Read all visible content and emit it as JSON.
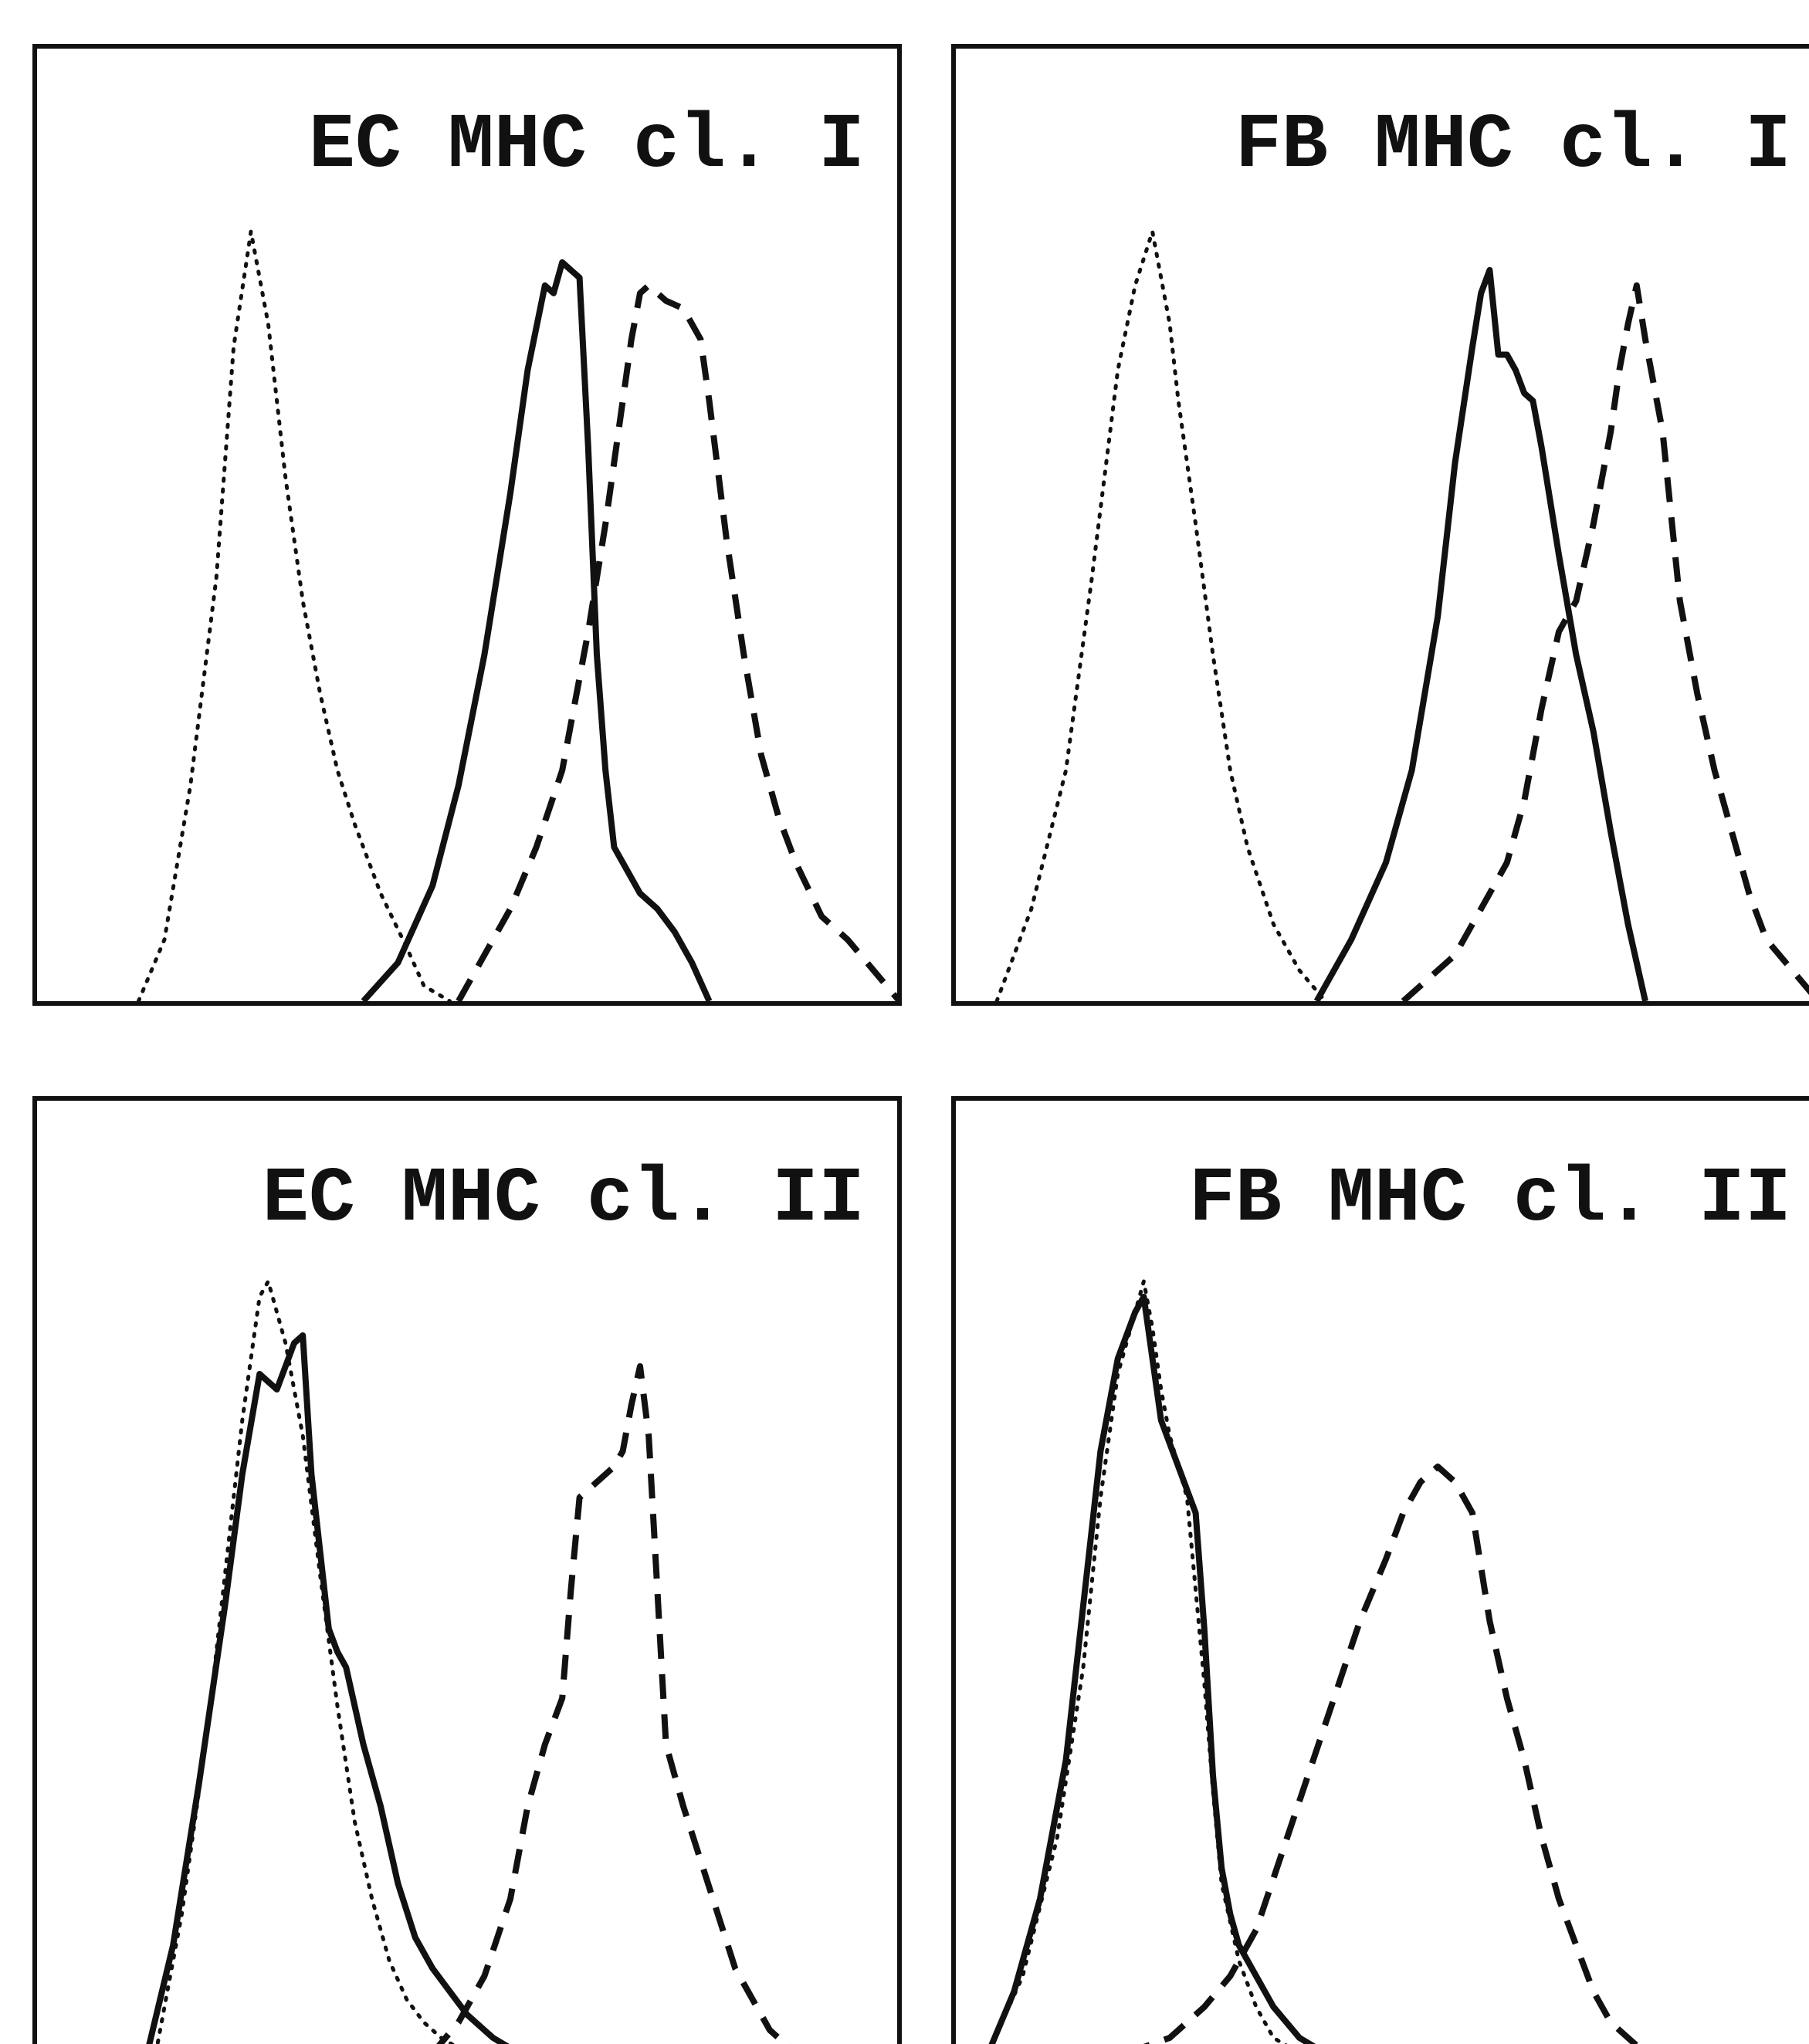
{
  "chart_data": [
    {
      "type": "line",
      "title": "EC MHC cl. I",
      "xlabel": "",
      "ylabel": "",
      "xlim": [
        0,
        100
      ],
      "ylim": [
        0,
        1
      ],
      "grid": false,
      "series": [
        {
          "style": "dotted",
          "color": "#111111",
          "x": [
            12,
            15,
            18,
            21,
            23,
            25,
            27,
            29,
            31,
            33,
            35,
            37,
            40,
            43,
            45,
            48
          ],
          "y": [
            0.0,
            0.08,
            0.28,
            0.55,
            0.85,
            1.0,
            0.88,
            0.68,
            0.52,
            0.4,
            0.3,
            0.23,
            0.14,
            0.07,
            0.02,
            0.0
          ]
        },
        {
          "style": "solid",
          "color": "#111111",
          "x": [
            38,
            42,
            46,
            49,
            52,
            55,
            57,
            59,
            60,
            61,
            62,
            63,
            64,
            65,
            66,
            67,
            68,
            70,
            72,
            74,
            76,
            78
          ],
          "y": [
            0.0,
            0.05,
            0.15,
            0.28,
            0.45,
            0.66,
            0.82,
            0.93,
            0.92,
            0.96,
            0.95,
            0.94,
            0.72,
            0.45,
            0.3,
            0.2,
            0.18,
            0.14,
            0.12,
            0.09,
            0.05,
            0.0
          ]
        },
        {
          "style": "dashed",
          "color": "#111111",
          "x": [
            49,
            52,
            55,
            58,
            61,
            64,
            66,
            68,
            69,
            70,
            71,
            72,
            73,
            75,
            77,
            78,
            80,
            82,
            84,
            86,
            88,
            91,
            94,
            97,
            100
          ],
          "y": [
            0.0,
            0.06,
            0.12,
            0.2,
            0.3,
            0.48,
            0.62,
            0.78,
            0.86,
            0.92,
            0.93,
            0.92,
            0.91,
            0.9,
            0.86,
            0.78,
            0.6,
            0.45,
            0.32,
            0.24,
            0.18,
            0.11,
            0.08,
            0.04,
            0.0
          ]
        }
      ]
    },
    {
      "type": "line",
      "title": "FB MHC cl. I",
      "xlabel": "",
      "ylabel": "",
      "xlim": [
        0,
        100
      ],
      "ylim": [
        0,
        1
      ],
      "grid": false,
      "series": [
        {
          "style": "dotted",
          "color": "#111111",
          "x": [
            5,
            9,
            13,
            16,
            19,
            21,
            23,
            25,
            26,
            28,
            30,
            32,
            34,
            37,
            40,
            43
          ],
          "y": [
            0.0,
            0.12,
            0.3,
            0.55,
            0.82,
            0.93,
            1.0,
            0.88,
            0.78,
            0.62,
            0.45,
            0.3,
            0.2,
            0.1,
            0.04,
            0.0
          ]
        },
        {
          "style": "solid",
          "color": "#111111",
          "x": [
            42,
            46,
            50,
            53,
            56,
            58,
            60,
            61,
            62,
            63,
            64,
            65,
            66,
            67,
            68,
            70,
            72,
            74,
            76,
            78,
            80
          ],
          "y": [
            0.0,
            0.08,
            0.18,
            0.3,
            0.5,
            0.7,
            0.85,
            0.92,
            0.95,
            0.84,
            0.84,
            0.82,
            0.79,
            0.78,
            0.72,
            0.58,
            0.45,
            0.35,
            0.22,
            0.1,
            0.0
          ]
        },
        {
          "style": "dashed",
          "color": "#111111",
          "x": [
            52,
            55,
            58,
            61,
            64,
            66,
            68,
            70,
            72,
            74,
            76,
            77,
            78,
            79,
            80,
            82,
            84,
            86,
            88,
            90,
            92,
            94,
            97,
            100
          ],
          "y": [
            0.0,
            0.03,
            0.06,
            0.12,
            0.18,
            0.26,
            0.38,
            0.48,
            0.52,
            0.62,
            0.74,
            0.82,
            0.88,
            0.93,
            0.86,
            0.74,
            0.52,
            0.4,
            0.3,
            0.22,
            0.14,
            0.08,
            0.04,
            0.0
          ]
        }
      ]
    },
    {
      "type": "line",
      "title": "EC MHC cl. II",
      "xlabel": "",
      "ylabel": "",
      "xlim": [
        0,
        100
      ],
      "ylim": [
        0,
        1
      ],
      "grid": false,
      "series": [
        {
          "style": "dotted",
          "color": "#111111",
          "x": [
            14,
            17,
            20,
            22,
            24,
            26,
            27,
            29,
            31,
            33,
            35,
            37,
            39,
            41,
            43,
            45,
            47,
            50
          ],
          "y": [
            0.0,
            0.18,
            0.42,
            0.62,
            0.82,
            0.98,
            1.0,
            0.92,
            0.8,
            0.62,
            0.45,
            0.3,
            0.2,
            0.12,
            0.07,
            0.04,
            0.02,
            0.0
          ]
        },
        {
          "style": "solid",
          "color": "#111111",
          "x": [
            13,
            16,
            19,
            22,
            24,
            26,
            28,
            30,
            31,
            32,
            33,
            34,
            35,
            36,
            38,
            40,
            42,
            44,
            46,
            48,
            50,
            53,
            56
          ],
          "y": [
            0.0,
            0.14,
            0.35,
            0.58,
            0.75,
            0.88,
            0.86,
            0.92,
            0.93,
            0.75,
            0.65,
            0.55,
            0.52,
            0.5,
            0.4,
            0.32,
            0.22,
            0.15,
            0.11,
            0.08,
            0.05,
            0.02,
            0.0
          ]
        },
        {
          "style": "dashed",
          "color": "#111111",
          "x": [
            46,
            49,
            52,
            55,
            57,
            59,
            61,
            62,
            63,
            65,
            67,
            68,
            69,
            70,
            71,
            72,
            73,
            75,
            77,
            79,
            81,
            83,
            85,
            87,
            89
          ],
          "y": [
            0.0,
            0.04,
            0.1,
            0.2,
            0.32,
            0.4,
            0.46,
            0.6,
            0.72,
            0.74,
            0.76,
            0.78,
            0.84,
            0.89,
            0.8,
            0.6,
            0.4,
            0.32,
            0.25,
            0.18,
            0.11,
            0.07,
            0.03,
            0.01,
            0.0
          ]
        }
      ]
    },
    {
      "type": "line",
      "title": "FB MHC cl. II",
      "xlabel": "",
      "ylabel": "",
      "xlim": [
        0,
        100
      ],
      "ylim": [
        0,
        1
      ],
      "grid": false,
      "series": [
        {
          "style": "dotted",
          "color": "#111111",
          "x": [
            4,
            8,
            12,
            15,
            17,
            19,
            21,
            22,
            23,
            24,
            25,
            27,
            28,
            29,
            30,
            31,
            33,
            35,
            37,
            40
          ],
          "y": [
            0.0,
            0.1,
            0.28,
            0.5,
            0.72,
            0.88,
            0.96,
            1.0,
            0.94,
            0.86,
            0.8,
            0.72,
            0.6,
            0.48,
            0.34,
            0.22,
            0.12,
            0.06,
            0.02,
            0.0
          ]
        },
        {
          "style": "solid",
          "color": "#111111",
          "x": [
            4,
            7,
            10,
            13,
            15,
            17,
            19,
            21,
            22,
            23,
            24,
            26,
            28,
            29,
            30,
            31,
            32,
            33,
            35,
            37,
            40,
            43
          ],
          "y": [
            0.0,
            0.08,
            0.2,
            0.38,
            0.58,
            0.78,
            0.9,
            0.96,
            0.98,
            0.9,
            0.82,
            0.76,
            0.7,
            0.55,
            0.36,
            0.24,
            0.18,
            0.14,
            0.1,
            0.06,
            0.02,
            0.0
          ]
        },
        {
          "style": "dashed",
          "color": "#111111",
          "x": [
            20,
            25,
            29,
            32,
            35,
            38,
            41,
            44,
            47,
            50,
            52,
            54,
            56,
            58,
            60,
            62,
            64,
            66,
            68,
            70,
            72,
            74,
            76,
            79,
            82
          ],
          "y": [
            0.0,
            0.02,
            0.06,
            0.1,
            0.16,
            0.26,
            0.36,
            0.46,
            0.56,
            0.64,
            0.7,
            0.74,
            0.76,
            0.74,
            0.7,
            0.56,
            0.46,
            0.38,
            0.28,
            0.2,
            0.14,
            0.08,
            0.04,
            0.01,
            0.0
          ]
        }
      ]
    }
  ]
}
